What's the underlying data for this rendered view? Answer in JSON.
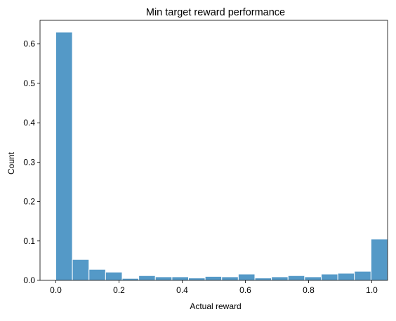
{
  "chart_data": {
    "type": "histogram",
    "title": "Min target reward performance",
    "xlabel": "Actual reward",
    "ylabel": "Count",
    "xlim": [
      -0.05,
      1.05
    ],
    "ylim": [
      0,
      0.66
    ],
    "xticks": [
      0.0,
      0.2,
      0.4,
      0.6,
      0.8,
      1.0
    ],
    "xtick_labels": [
      "0.0",
      "0.2",
      "0.4",
      "0.6",
      "0.8",
      "1.0"
    ],
    "yticks": [
      0.0,
      0.1,
      0.2,
      0.3,
      0.4,
      0.5,
      0.6
    ],
    "ytick_labels": [
      "0.0",
      "0.1",
      "0.2",
      "0.3",
      "0.4",
      "0.5",
      "0.6"
    ],
    "bin_edges": [
      0.0,
      0.0525,
      0.105,
      0.1575,
      0.21,
      0.2625,
      0.315,
      0.3675,
      0.42,
      0.4725,
      0.525,
      0.5775,
      0.63,
      0.6825,
      0.735,
      0.7875,
      0.84,
      0.8925,
      0.945,
      0.9975
    ],
    "values": [
      0.63,
      0.053,
      0.028,
      0.021,
      0.005,
      0.012,
      0.009,
      0.009,
      0.006,
      0.01,
      0.009,
      0.016,
      0.006,
      0.009,
      0.012,
      0.009,
      0.016,
      0.018,
      0.023,
      0.105
    ],
    "grid": false,
    "colors": {
      "bar_fill": "#5499c7",
      "bar_edge": "#ffffff",
      "axes": "#000000",
      "background": "#ffffff"
    }
  }
}
